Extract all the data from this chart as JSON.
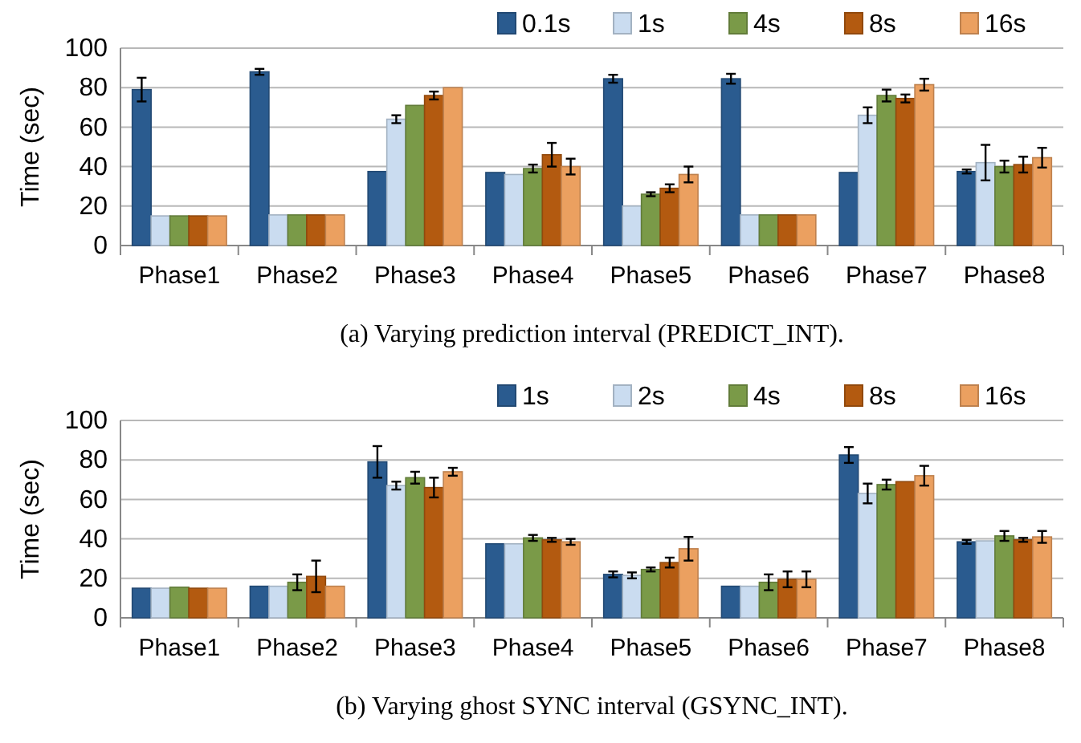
{
  "chart_data": [
    {
      "type": "bar",
      "title": "(a)  Varying prediction interval (PREDICT_INT).",
      "ylabel": "Time (sec)",
      "categories": [
        "Phase1",
        "Phase2",
        "Phase3",
        "Phase4",
        "Phase5",
        "Phase6",
        "Phase7",
        "Phase8"
      ],
      "ylim": [
        0,
        100
      ],
      "yticks": [
        0,
        20,
        40,
        60,
        80,
        100
      ],
      "grid": "y",
      "legend": "top right",
      "series": [
        {
          "name": "0.1s",
          "color": "#2a5b8f",
          "values": [
            79,
            88,
            37.5,
            37,
            84.5,
            84.5,
            37,
            37.5
          ],
          "errors": [
            6,
            1.5,
            null,
            null,
            2,
            2.5,
            null,
            1
          ]
        },
        {
          "name": "1s",
          "color": "#cadcf0",
          "values": [
            15,
            15.5,
            64,
            36,
            20,
            15.5,
            66,
            42
          ],
          "errors": [
            null,
            null,
            2,
            null,
            null,
            null,
            4,
            9
          ]
        },
        {
          "name": "4s",
          "color": "#7a9a48",
          "values": [
            15,
            15.5,
            71,
            39,
            26,
            15.5,
            76,
            40
          ],
          "errors": [
            null,
            null,
            null,
            2,
            1,
            null,
            3,
            3
          ]
        },
        {
          "name": "8s",
          "color": "#b35a10",
          "values": [
            15,
            15.5,
            76,
            46,
            29,
            15.5,
            74.5,
            41
          ],
          "errors": [
            null,
            null,
            2,
            6,
            2,
            null,
            2,
            4
          ]
        },
        {
          "name": "16s",
          "color": "#eba060",
          "values": [
            15,
            15.5,
            80,
            40,
            36,
            15.5,
            81.5,
            44.5
          ],
          "errors": [
            null,
            null,
            null,
            4,
            4,
            null,
            3,
            5
          ]
        }
      ]
    },
    {
      "type": "bar",
      "title": "(b)  Varying ghost SYNC interval (GSYNC_INT).",
      "ylabel": "Time (sec)",
      "categories": [
        "Phase1",
        "Phase2",
        "Phase3",
        "Phase4",
        "Phase5",
        "Phase6",
        "Phase7",
        "Phase8"
      ],
      "ylim": [
        0,
        100
      ],
      "yticks": [
        0,
        20,
        40,
        60,
        80,
        100
      ],
      "grid": "y",
      "legend": "top right",
      "series": [
        {
          "name": "1s",
          "color": "#2a5b8f",
          "values": [
            15,
            16,
            79,
            37.5,
            22,
            16,
            82.5,
            38.5
          ],
          "errors": [
            null,
            null,
            8,
            null,
            1.5,
            null,
            4,
            1
          ]
        },
        {
          "name": "2s",
          "color": "#cadcf0",
          "values": [
            15,
            16,
            67,
            37.5,
            21.5,
            16,
            63,
            39
          ],
          "errors": [
            null,
            null,
            2,
            null,
            1.5,
            null,
            5,
            null
          ]
        },
        {
          "name": "4s",
          "color": "#7a9a48",
          "values": [
            15.5,
            18,
            71,
            40.5,
            24.5,
            18,
            67.5,
            41.5
          ],
          "errors": [
            null,
            4,
            3,
            1.5,
            1,
            4,
            2.5,
            2.5
          ]
        },
        {
          "name": "8s",
          "color": "#b35a10",
          "values": [
            15,
            21,
            66,
            39.5,
            28,
            19.5,
            69,
            39.5
          ],
          "errors": [
            null,
            8,
            5,
            1,
            2.5,
            4,
            null,
            1
          ]
        },
        {
          "name": "16s",
          "color": "#eba060",
          "values": [
            15,
            16,
            74,
            38.5,
            35,
            19.5,
            72,
            41
          ],
          "errors": [
            null,
            null,
            2,
            1.5,
            6,
            4,
            5,
            3
          ]
        }
      ]
    }
  ]
}
